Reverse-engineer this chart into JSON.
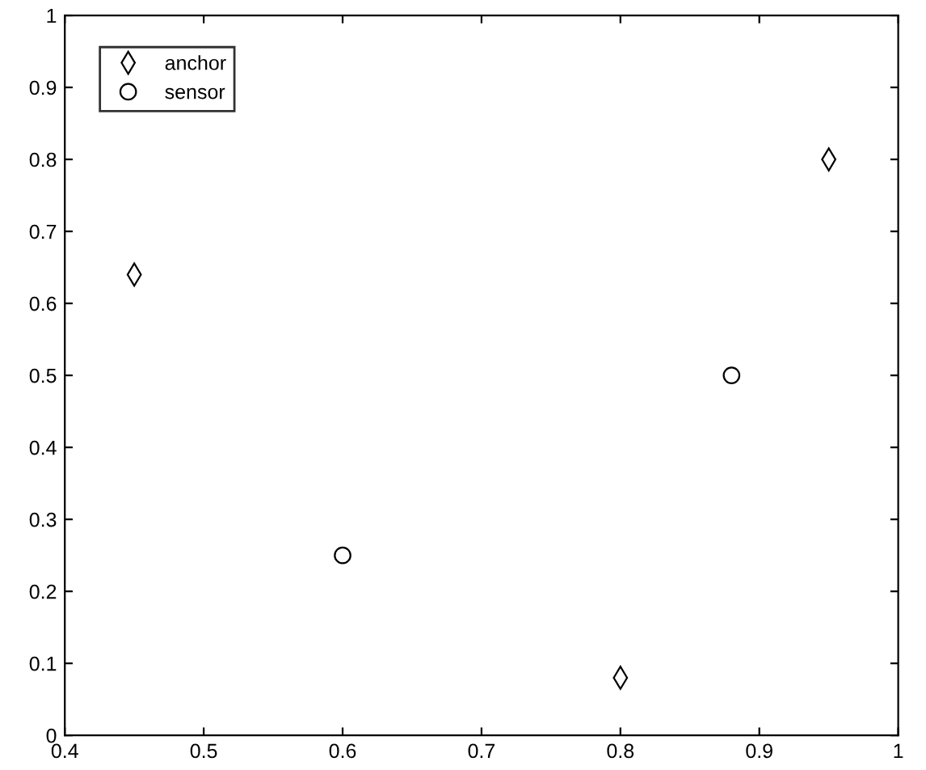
{
  "chart_data": {
    "type": "scatter",
    "series": [
      {
        "name": "anchor",
        "color": "#000000",
        "marker": "diamond",
        "x": [
          0.45,
          0.8,
          0.95
        ],
        "values": [
          0.64,
          0.08,
          0.8
        ]
      },
      {
        "name": "sensor",
        "color": "#000000",
        "marker": "circle",
        "x": [
          0.6,
          0.88
        ],
        "values": [
          0.25,
          0.5
        ]
      }
    ],
    "xlim": [
      0.4,
      1
    ],
    "ylim": [
      0,
      1
    ],
    "xticks": [
      0.4,
      0.5,
      0.6,
      0.7,
      0.8,
      0.9,
      1
    ],
    "yticks": [
      0,
      0.1,
      0.2,
      0.3,
      0.4,
      0.5,
      0.6,
      0.7,
      0.8,
      0.9,
      1
    ],
    "grid": false,
    "legend": "top left"
  }
}
